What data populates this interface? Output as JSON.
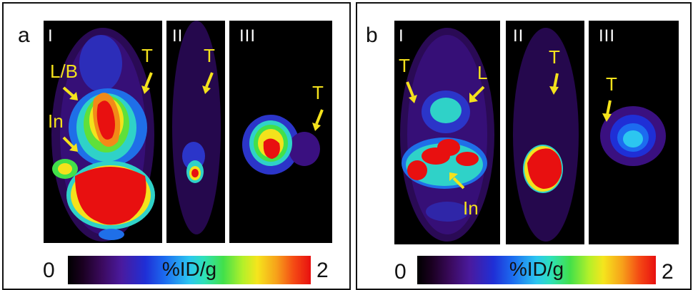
{
  "panel_a": {
    "label": "a",
    "scans": [
      {
        "numeral": "I",
        "annotations": [
          "L/B",
          "In",
          "T"
        ]
      },
      {
        "numeral": "II",
        "annotations": [
          "T"
        ]
      },
      {
        "numeral": "III",
        "annotations": [
          "T"
        ]
      }
    ],
    "colorbar": {
      "min": "0",
      "max": "2",
      "unit": "%ID/g"
    }
  },
  "panel_b": {
    "label": "b",
    "scans": [
      {
        "numeral": "I",
        "annotations": [
          "T",
          "L",
          "In"
        ]
      },
      {
        "numeral": "II",
        "annotations": [
          "T"
        ]
      },
      {
        "numeral": "III",
        "annotations": [
          "T"
        ]
      }
    ],
    "colorbar": {
      "min": "0",
      "max": "2",
      "unit": "%ID/g"
    }
  },
  "colors": {
    "annotation": "#f4e21c",
    "background": "#000000",
    "hot": "#e81010"
  }
}
